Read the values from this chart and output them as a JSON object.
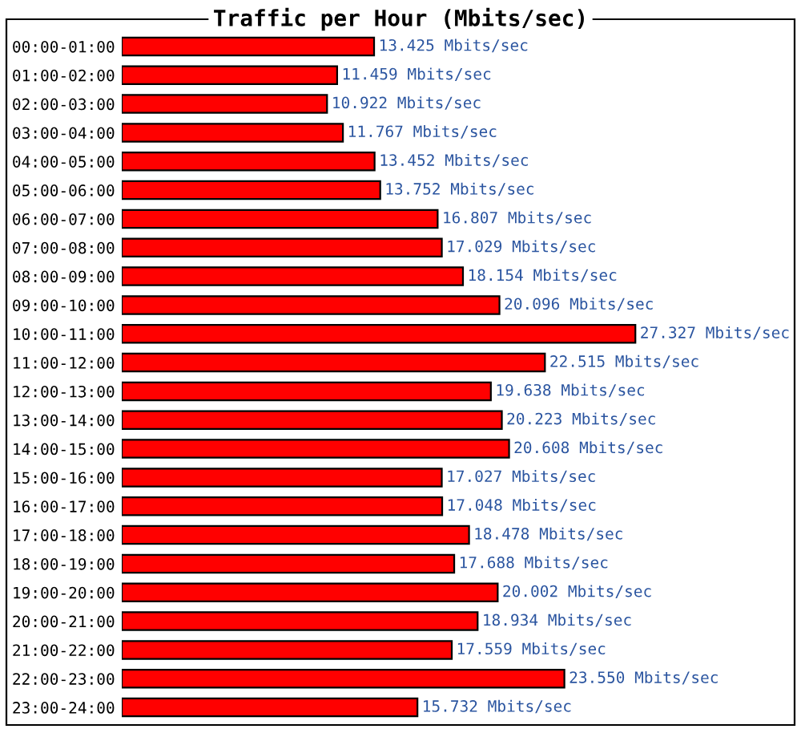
{
  "chart_data": {
    "type": "bar",
    "orientation": "horizontal",
    "title": "Traffic per Hour (Mbits/sec)",
    "categories": [
      "00:00-01:00",
      "01:00-02:00",
      "02:00-03:00",
      "03:00-04:00",
      "04:00-05:00",
      "05:00-06:00",
      "06:00-07:00",
      "07:00-08:00",
      "08:00-09:00",
      "09:00-10:00",
      "10:00-11:00",
      "11:00-12:00",
      "12:00-13:00",
      "13:00-14:00",
      "14:00-15:00",
      "15:00-16:00",
      "16:00-17:00",
      "17:00-18:00",
      "18:00-19:00",
      "19:00-20:00",
      "20:00-21:00",
      "21:00-22:00",
      "22:00-23:00",
      "23:00-24:00"
    ],
    "values": [
      13.425,
      11.459,
      10.922,
      11.767,
      13.452,
      13.752,
      16.807,
      17.029,
      18.154,
      20.096,
      27.327,
      22.515,
      19.638,
      20.223,
      20.608,
      17.027,
      17.048,
      18.478,
      17.688,
      20.002,
      18.934,
      17.559,
      23.55,
      15.732
    ],
    "value_labels": [
      "13.425 Mbits/sec",
      "11.459 Mbits/sec",
      "10.922 Mbits/sec",
      "11.767 Mbits/sec",
      "13.452 Mbits/sec",
      "13.752 Mbits/sec",
      "16.807 Mbits/sec",
      "17.029 Mbits/sec",
      "18.154 Mbits/sec",
      "20.096 Mbits/sec",
      "27.327 Mbits/sec",
      "22.515 Mbits/sec",
      "19.638 Mbits/sec",
      "20.223 Mbits/sec",
      "20.608 Mbits/sec",
      "17.027 Mbits/sec",
      "17.048 Mbits/sec",
      "18.478 Mbits/sec",
      "17.688 Mbits/sec",
      "20.002 Mbits/sec",
      "18.934 Mbits/sec",
      "17.559 Mbits/sec",
      "23.550 Mbits/sec",
      "15.732 Mbits/sec"
    ],
    "color": "#ff0000",
    "grid": false,
    "legend": false
  }
}
